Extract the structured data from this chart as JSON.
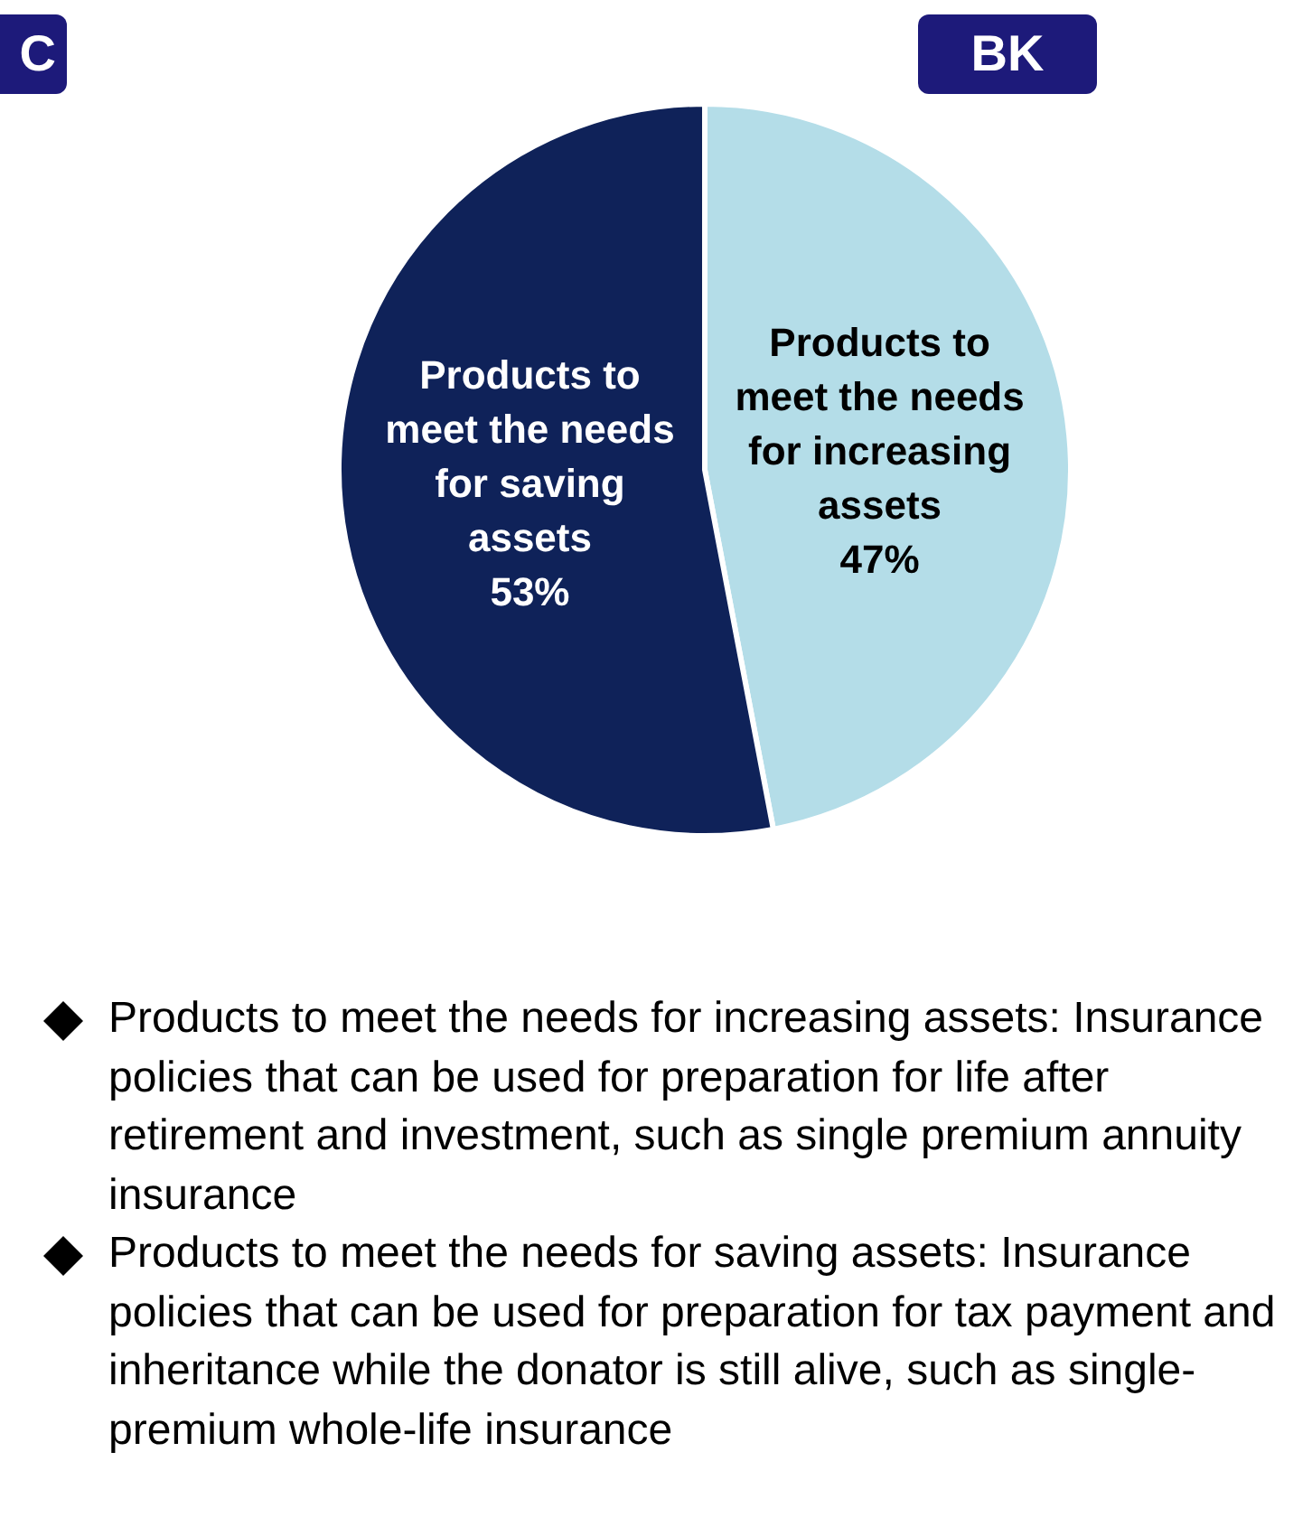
{
  "chart_data": {
    "type": "pie",
    "categories": [
      "Products to meet the needs for increasing assets",
      "Products to meet the needs for saving assets"
    ],
    "values": [
      47,
      53
    ],
    "value_labels": [
      "47%",
      "53%"
    ],
    "colors": [
      "#b4dde8",
      "#0f2259"
    ],
    "legend": false,
    "annotations": [
      "C",
      "BK",
      "Products to meet the needs for increasing assets: Insurance policies that can be used for preparation for life after retirement and investment, such as single premium annuity insurance",
      "Products to meet the needs for saving assets: Insurance policies that can be used for preparation for tax payment and inheritance while the donator is still alive, such as single-premium whole-life insurance"
    ]
  }
}
